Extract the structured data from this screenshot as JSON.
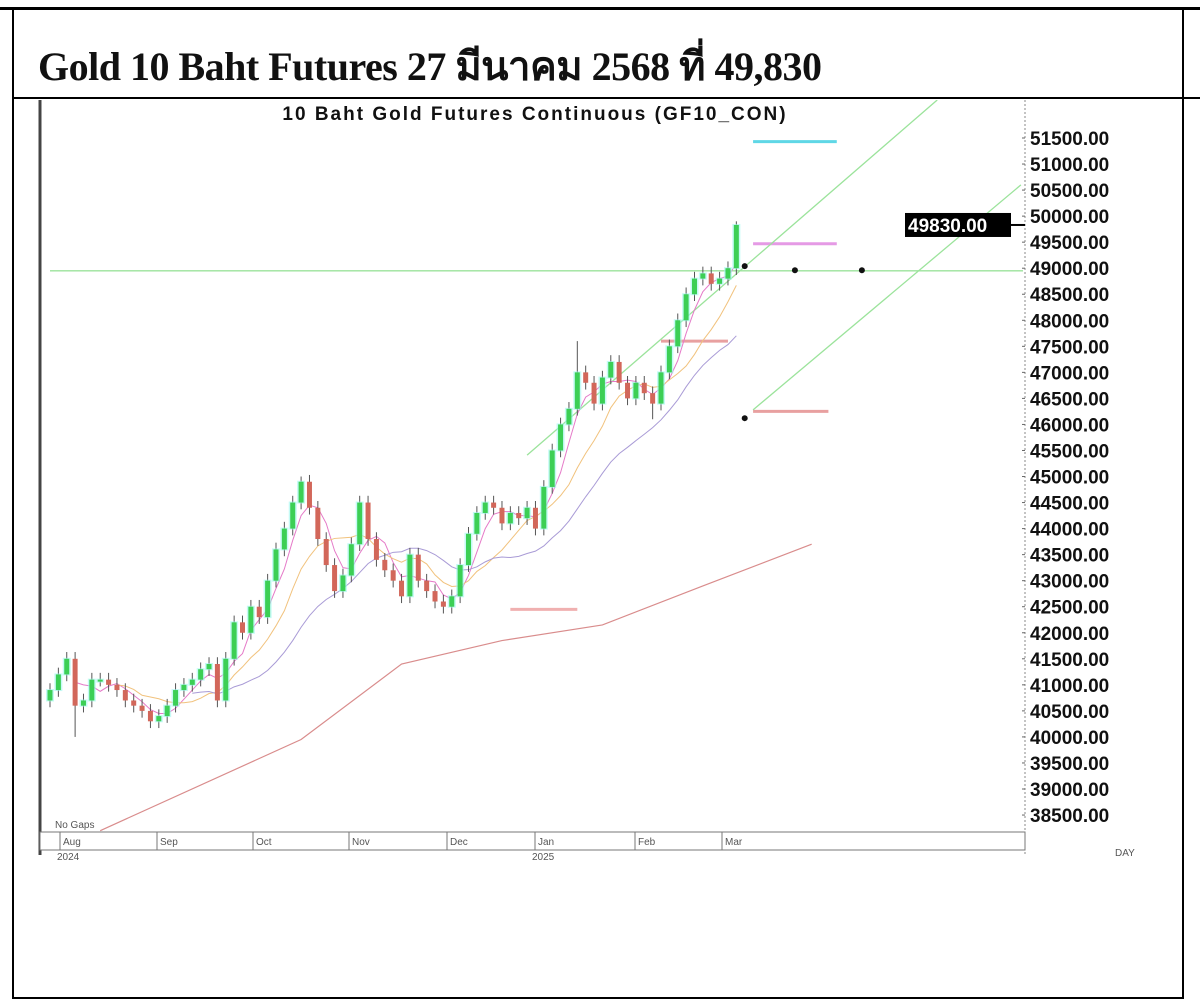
{
  "document": {
    "title": "Gold 10 Baht Futures 27 มีนาคม 2568 ที่ 49,830"
  },
  "chart_data": {
    "type": "candlestick",
    "title": "10 Baht Gold Futures Continuous (GF10_CON)",
    "interval_label": "DAY",
    "gaps_label": "No Gaps",
    "ylim": [
      38200,
      52200
    ],
    "y_ticks": [
      "51500.00",
      "51000.00",
      "50500.00",
      "50000.00",
      "49500.00",
      "49000.00",
      "48500.00",
      "48000.00",
      "47500.00",
      "47000.00",
      "46500.00",
      "46000.00",
      "45500.00",
      "45000.00",
      "44500.00",
      "44000.00",
      "43500.00",
      "43000.00",
      "42500.00",
      "42000.00",
      "41500.00",
      "41000.00",
      "40500.00",
      "40000.00",
      "39500.00",
      "39000.00",
      "38500.00"
    ],
    "last_price_label": "49830.00",
    "last_price": 49830,
    "x_ticks": [
      {
        "label": "Aug",
        "year": "2024"
      },
      {
        "label": "Sep"
      },
      {
        "label": "Oct"
      },
      {
        "label": "Nov"
      },
      {
        "label": "Dec"
      },
      {
        "label": "Jan",
        "year": "2025"
      },
      {
        "label": "Feb"
      },
      {
        "label": "Mar"
      }
    ],
    "closes": [
      40900,
      41200,
      41500,
      40600,
      40700,
      41100,
      41100,
      41000,
      40900,
      40700,
      40600,
      40500,
      40300,
      40400,
      40600,
      40900,
      41000,
      41100,
      41300,
      41400,
      40700,
      41500,
      42200,
      42000,
      42500,
      42300,
      43000,
      43600,
      44000,
      44500,
      44900,
      44400,
      43800,
      43300,
      42800,
      43100,
      43700,
      44500,
      43800,
      43400,
      43200,
      43000,
      42700,
      43500,
      43000,
      42800,
      42600,
      42500,
      42700,
      43300,
      43900,
      44300,
      44500,
      44400,
      44100,
      44300,
      44200,
      44400,
      44000,
      44800,
      45500,
      46000,
      46300,
      47000,
      46800,
      46400,
      46900,
      47200,
      46800,
      46500,
      46800,
      46600,
      46400,
      47000,
      47500,
      48000,
      48500,
      48800,
      48900,
      48700,
      48800,
      49000,
      49830
    ],
    "wick_extremes": [
      {
        "index": 3,
        "low": 40000
      },
      {
        "index": 30,
        "high": 45000
      },
      {
        "index": 63,
        "high": 47600
      },
      {
        "index": 72,
        "low": 46100
      },
      {
        "index": 82,
        "high": 49900
      }
    ],
    "long_ma": [
      [
        6,
        38200
      ],
      [
        30,
        39950
      ],
      [
        42,
        41400
      ],
      [
        54,
        41850
      ],
      [
        66,
        42150
      ],
      [
        78,
        42900
      ],
      [
        91,
        43700
      ]
    ],
    "trendlines": [
      {
        "color": "#9be39b",
        "from": [
          57,
          45410
        ],
        "to": [
          106,
          52230
        ]
      },
      {
        "color": "#9be39b",
        "from": [
          84,
          46280
        ],
        "to": [
          116,
          50600
        ]
      }
    ],
    "horizontal_line": {
      "value": 48950,
      "color": "#9be39b"
    },
    "levels": [
      {
        "value": 51430,
        "from": 84,
        "to": 94,
        "color": "#5fd7e6"
      },
      {
        "value": 49470,
        "from": 84,
        "to": 94,
        "color": "#e59ae5"
      },
      {
        "value": 47600,
        "from": 73,
        "to": 81,
        "color": "#e8a0a0"
      },
      {
        "value": 46250,
        "from": 84,
        "to": 93,
        "color": "#e8a0a0"
      },
      {
        "value": 42450,
        "from": 55,
        "to": 63,
        "color": "#f0b0b0"
      }
    ],
    "markers": [
      [
        83,
        49040
      ],
      [
        89,
        48960
      ],
      [
        97,
        48960
      ],
      [
        83,
        46120
      ]
    ],
    "colors": {
      "up": "#3ccf55",
      "down": "#d2675a",
      "glow": "#9ff7ee",
      "ma_fast": "#e57ac8",
      "ma_mid": "#f1c27d",
      "ma_slow": "#a99bd6",
      "long_ma": "#d98c8c"
    }
  }
}
